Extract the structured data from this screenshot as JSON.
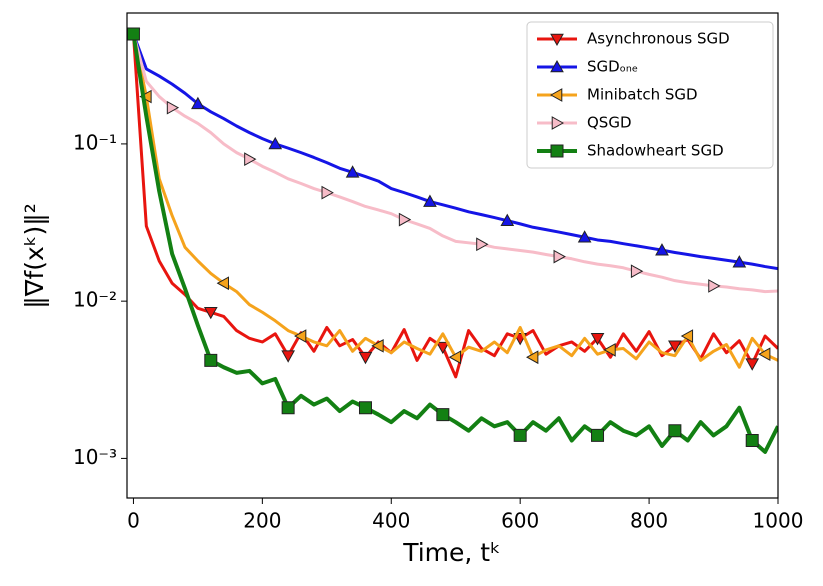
{
  "chart_data": {
    "type": "line",
    "xlabel": "Time, tᵏ",
    "ylabel": "‖∇f(xᵏ)‖²",
    "x": [
      0,
      20,
      40,
      60,
      80,
      100,
      120,
      140,
      160,
      180,
      200,
      220,
      240,
      260,
      280,
      300,
      320,
      340,
      360,
      380,
      400,
      420,
      440,
      460,
      480,
      500,
      520,
      540,
      560,
      580,
      600,
      620,
      640,
      660,
      680,
      700,
      720,
      740,
      760,
      780,
      800,
      820,
      840,
      860,
      880,
      900,
      920,
      940,
      960,
      980,
      1000
    ],
    "series": [
      {
        "name": "Asynchronous SGD",
        "color": "#e8150f",
        "marker": "v",
        "values": [
          0.5,
          0.03,
          0.018,
          0.013,
          0.011,
          0.009,
          0.0085,
          0.008,
          0.0065,
          0.0058,
          0.0055,
          0.0062,
          0.0045,
          0.0063,
          0.0048,
          0.0068,
          0.0052,
          0.0057,
          0.0044,
          0.0055,
          0.0047,
          0.0066,
          0.0042,
          0.0058,
          0.0051,
          0.0033,
          0.0065,
          0.005,
          0.0045,
          0.0062,
          0.0058,
          0.0065,
          0.0046,
          0.0052,
          0.0055,
          0.0048,
          0.0058,
          0.0044,
          0.0062,
          0.0048,
          0.0064,
          0.0045,
          0.0052,
          0.0057,
          0.0043,
          0.0062,
          0.0047,
          0.0056,
          0.004,
          0.006,
          0.005
        ]
      },
      {
        "name": "SGDₒₙₑ",
        "color": "#1515e6",
        "marker": "^",
        "values": [
          0.5,
          0.3,
          0.27,
          0.24,
          0.21,
          0.18,
          0.16,
          0.145,
          0.13,
          0.118,
          0.108,
          0.1,
          0.094,
          0.088,
          0.082,
          0.076,
          0.07,
          0.066,
          0.062,
          0.058,
          0.052,
          0.049,
          0.046,
          0.043,
          0.041,
          0.039,
          0.037,
          0.0355,
          0.034,
          0.0325,
          0.031,
          0.0295,
          0.0285,
          0.0275,
          0.0265,
          0.0255,
          0.0245,
          0.024,
          0.0232,
          0.0225,
          0.0218,
          0.0211,
          0.0204,
          0.0198,
          0.0192,
          0.0187,
          0.0182,
          0.0177,
          0.0172,
          0.0166,
          0.0161
        ]
      },
      {
        "name": "Minibatch SGD",
        "color": "#f5a31c",
        "marker": "<",
        "values": [
          0.5,
          0.2,
          0.06,
          0.035,
          0.022,
          0.018,
          0.015,
          0.013,
          0.0115,
          0.0095,
          0.0085,
          0.0075,
          0.0065,
          0.006,
          0.0055,
          0.0052,
          0.0065,
          0.0048,
          0.0058,
          0.0052,
          0.0047,
          0.0055,
          0.005,
          0.0046,
          0.0062,
          0.0044,
          0.0051,
          0.0048,
          0.0055,
          0.0047,
          0.0068,
          0.0044,
          0.0049,
          0.0052,
          0.0045,
          0.0058,
          0.0046,
          0.0049,
          0.005,
          0.0043,
          0.0055,
          0.0047,
          0.0045,
          0.006,
          0.0042,
          0.0048,
          0.0053,
          0.0038,
          0.0058,
          0.0046,
          0.0042
        ]
      },
      {
        "name": "QSGD",
        "color": "#f7bcc8",
        "marker": ">",
        "values": [
          0.5,
          0.25,
          0.2,
          0.17,
          0.15,
          0.135,
          0.118,
          0.1,
          0.088,
          0.08,
          0.072,
          0.066,
          0.06,
          0.056,
          0.052,
          0.049,
          0.046,
          0.043,
          0.04,
          0.038,
          0.036,
          0.033,
          0.031,
          0.029,
          0.026,
          0.024,
          0.0235,
          0.023,
          0.022,
          0.0215,
          0.021,
          0.0205,
          0.0198,
          0.0192,
          0.0186,
          0.0178,
          0.0172,
          0.0168,
          0.0163,
          0.0155,
          0.0148,
          0.0142,
          0.0135,
          0.0131,
          0.0128,
          0.0125,
          0.0123,
          0.012,
          0.0118,
          0.0115,
          0.0116
        ]
      },
      {
        "name": "Shadowheart SGD",
        "color": "#138013",
        "marker": "s",
        "values": [
          0.5,
          0.15,
          0.05,
          0.02,
          0.012,
          0.007,
          0.0042,
          0.0038,
          0.0035,
          0.0036,
          0.003,
          0.0032,
          0.0021,
          0.0025,
          0.0022,
          0.0024,
          0.002,
          0.0023,
          0.0021,
          0.0019,
          0.0017,
          0.002,
          0.0018,
          0.0022,
          0.0019,
          0.0017,
          0.0015,
          0.0018,
          0.0016,
          0.0017,
          0.0014,
          0.0017,
          0.0015,
          0.0018,
          0.0013,
          0.0016,
          0.0014,
          0.0017,
          0.0015,
          0.0014,
          0.0016,
          0.0012,
          0.0015,
          0.0013,
          0.0017,
          0.0014,
          0.0016,
          0.0021,
          0.0013,
          0.0011,
          0.0016
        ]
      }
    ],
    "xlim": [
      -10,
      1000
    ],
    "xticks": [
      0,
      200,
      400,
      600,
      800,
      1000
    ],
    "ylim": [
      0.00056,
      0.68
    ],
    "yticks": [
      {
        "value": 0.001,
        "label": "10⁻³"
      },
      {
        "value": 0.01,
        "label": "10⁻²"
      },
      {
        "value": 0.1,
        "label": "10⁻¹"
      }
    ],
    "ylog": true,
    "legend": "upper right"
  }
}
